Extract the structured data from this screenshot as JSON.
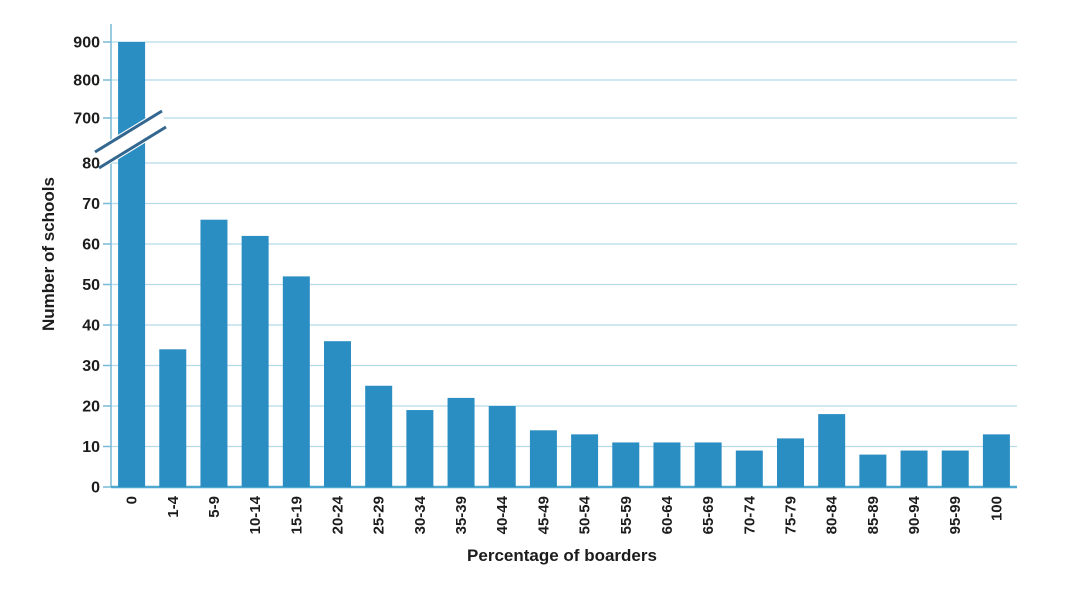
{
  "chart_data": {
    "type": "bar",
    "title": "",
    "xlabel": "Percentage of boarders",
    "ylabel": "Number of schools",
    "categories": [
      "0",
      "1-4",
      "5-9",
      "10-14",
      "15-19",
      "20-24",
      "25-29",
      "30-34",
      "35-39",
      "40-44",
      "45-49",
      "50-54",
      "55-59",
      "60-64",
      "65-69",
      "70-74",
      "75-79",
      "80-84",
      "85-89",
      "90-94",
      "95-99",
      "100"
    ],
    "values": [
      900,
      34,
      66,
      62,
      52,
      36,
      25,
      19,
      22,
      20,
      14,
      13,
      11,
      11,
      11,
      9,
      12,
      18,
      8,
      9,
      9,
      13
    ],
    "y_axis_break": {
      "enabled": true,
      "between": [
        80,
        700
      ]
    },
    "y_ticks_lower": [
      0,
      10,
      20,
      30,
      40,
      50,
      60,
      70,
      80
    ],
    "y_ticks_upper": [
      700,
      800,
      900
    ],
    "ylim_lower": [
      0,
      80
    ],
    "ylim_upper": [
      700,
      900
    ],
    "grid": "horizontal",
    "legend": "none",
    "colors": {
      "bar": "#2B8EC3",
      "gridline": "#B5DAEA",
      "axis": "#77BAD8",
      "baseline": "#4FA8D0",
      "break_mark": "#33678F",
      "text": "#1C1C1C",
      "background": "#FFFFFF"
    }
  }
}
